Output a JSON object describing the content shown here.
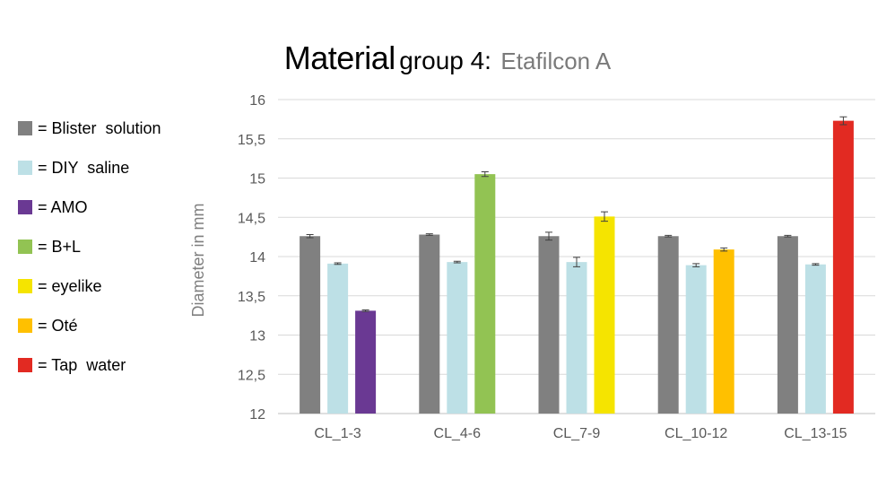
{
  "chart_data": {
    "type": "bar",
    "title": "Material group 4:",
    "title_main": "Material",
    "title_group": "group 4:",
    "subtitle": "Etafilcon A",
    "xlabel": "",
    "ylabel": "Diameter in mm",
    "ylim": [
      12,
      16
    ],
    "yticks": [
      "12",
      "12,5",
      "13",
      "13,5",
      "14",
      "14,5",
      "15",
      "15,5",
      "16"
    ],
    "ytick_values": [
      12,
      12.5,
      13,
      13.5,
      14,
      14.5,
      15,
      15.5,
      16
    ],
    "grid": true,
    "legend_position": "left",
    "categories": [
      "CL_1-3",
      "CL_4-6",
      "CL_7-9",
      "CL_10-12",
      "CL_13-15"
    ],
    "groups": [
      {
        "category": "CL_1-3",
        "bars": [
          {
            "series": "Blister solution",
            "value": 14.26,
            "error": 0.02
          },
          {
            "series": "DIY saline",
            "value": 13.91,
            "error": 0.01
          },
          {
            "series": "AMO",
            "value": 13.31,
            "error": 0.01
          }
        ]
      },
      {
        "category": "CL_4-6",
        "bars": [
          {
            "series": "Blister solution",
            "value": 14.28,
            "error": 0.01
          },
          {
            "series": "DIY saline",
            "value": 13.93,
            "error": 0.01
          },
          {
            "series": "B+L",
            "value": 15.05,
            "error": 0.03
          }
        ]
      },
      {
        "category": "CL_7-9",
        "bars": [
          {
            "series": "Blister solution",
            "value": 14.26,
            "error": 0.05
          },
          {
            "series": "DIY saline",
            "value": 13.93,
            "error": 0.06
          },
          {
            "series": "eyelike",
            "value": 14.51,
            "error": 0.06
          }
        ]
      },
      {
        "category": "CL_10-12",
        "bars": [
          {
            "series": "Blister solution",
            "value": 14.26,
            "error": 0.01
          },
          {
            "series": "DIY saline",
            "value": 13.89,
            "error": 0.02
          },
          {
            "series": "Oté",
            "value": 14.09,
            "error": 0.02
          }
        ]
      },
      {
        "category": "CL_13-15",
        "bars": [
          {
            "series": "Blister solution",
            "value": 14.26,
            "error": 0.01
          },
          {
            "series": "DIY saline",
            "value": 13.9,
            "error": 0.01
          },
          {
            "series": "Tap water",
            "value": 15.73,
            "error": 0.05
          }
        ]
      }
    ],
    "series_colors": {
      "Blister solution": "#808080",
      "DIY saline": "#bde0e6",
      "AMO": "#6a3993",
      "B+L": "#92c353",
      "eyelike": "#f5e400",
      "Oté": "#ffc000",
      "Tap water": "#e22a22"
    }
  },
  "legend": [
    {
      "label": "= Blister  solution",
      "color": "#808080"
    },
    {
      "label": "= DIY  saline",
      "color": "#bde0e6"
    },
    {
      "label": "= AMO",
      "color": "#6a3993"
    },
    {
      "label": "= B+L",
      "color": "#92c353"
    },
    {
      "label": "= eyelike",
      "color": "#f5e400"
    },
    {
      "label": "= Oté",
      "color": "#ffc000"
    },
    {
      "label": "= Tap  water",
      "color": "#e22a22"
    }
  ]
}
